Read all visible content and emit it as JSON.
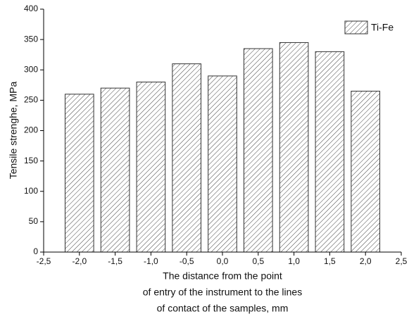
{
  "chart_data": {
    "type": "bar",
    "x": [
      -2.0,
      -1.5,
      -1.0,
      -0.5,
      0.0,
      0.5,
      1.0,
      1.5,
      2.0
    ],
    "series": [
      {
        "name": "Ti-Fe",
        "color": "#333333",
        "values": [
          260,
          270,
          280,
          310,
          290,
          335,
          345,
          330,
          265
        ]
      }
    ],
    "bar_width": 0.4,
    "xlim": [
      -2.5,
      2.5
    ],
    "xticks": [
      {
        "value": -2.5,
        "label": "-2,5"
      },
      {
        "value": -2.0,
        "label": "-2,0"
      },
      {
        "value": -1.5,
        "label": "-1,5"
      },
      {
        "value": -1.0,
        "label": "-1,0"
      },
      {
        "value": -0.5,
        "label": "-0,5"
      },
      {
        "value": 0.0,
        "label": "0,0"
      },
      {
        "value": 0.5,
        "label": "0,5"
      },
      {
        "value": 1.0,
        "label": "1,0"
      },
      {
        "value": 1.5,
        "label": "1,5"
      },
      {
        "value": 2.0,
        "label": "2,0"
      },
      {
        "value": 2.5,
        "label": "2,5"
      }
    ],
    "ylim": [
      0,
      400
    ],
    "yticks": [
      0,
      50,
      100,
      150,
      200,
      250,
      300,
      350,
      400
    ],
    "ylabel": "Tensile strenghe, MPa",
    "xlabel": [
      "The distance from the point",
      "of entry of the instrument to the lines",
      "of contact of the samples, mm"
    ],
    "legend": "upper right",
    "grid": false
  }
}
